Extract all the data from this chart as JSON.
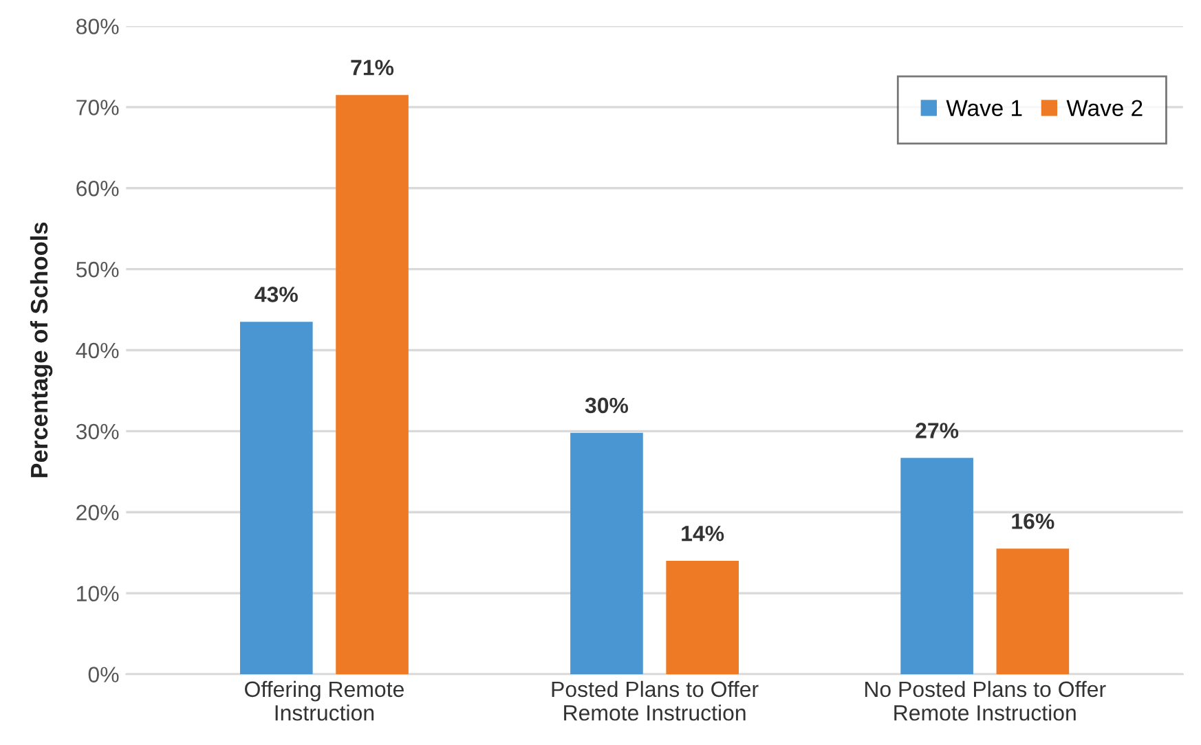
{
  "chart_data": {
    "type": "bar",
    "ylabel": "Percentage of Schools",
    "categories": [
      "Offering Remote\nInstruction",
      "Posted Plans to Offer\nRemote Instruction",
      "No Posted Plans to Offer\nRemote Instruction"
    ],
    "series": [
      {
        "name": "Wave 1",
        "color": "#4a96d2",
        "values": [
          43.5,
          29.8,
          26.7
        ],
        "value_labels": [
          "43%",
          "30%",
          "27%"
        ]
      },
      {
        "name": "Wave 2",
        "color": "#ee7a26",
        "values": [
          71.5,
          14,
          15.5
        ],
        "value_labels": [
          "71%",
          "14%",
          "16%"
        ]
      }
    ],
    "ylim": [
      0,
      80
    ],
    "yticks": [
      {
        "value": 0,
        "label": "0%"
      },
      {
        "value": 10,
        "label": "10%"
      },
      {
        "value": 20,
        "label": "20%"
      },
      {
        "value": 30,
        "label": "30%"
      },
      {
        "value": 40,
        "label": "40%"
      },
      {
        "value": 50,
        "label": "50%"
      },
      {
        "value": 60,
        "label": "60%"
      },
      {
        "value": 70,
        "label": "70%"
      },
      {
        "value": 80,
        "label": "80%"
      }
    ],
    "grid": "y",
    "legend": "top right"
  }
}
